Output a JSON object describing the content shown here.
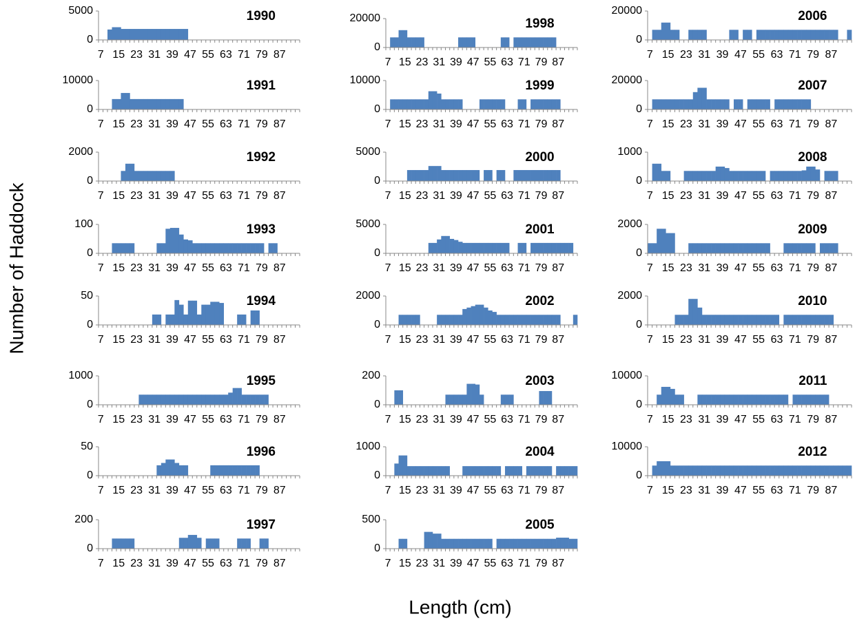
{
  "chart_data": {
    "type": "bar",
    "xlabel": "Length (cm)",
    "ylabel": "Number of Haddock",
    "color": "#4f81bd",
    "categories": [
      7,
      null,
      null,
      null,
      15,
      null,
      null,
      null,
      23,
      null,
      null,
      null,
      31,
      null,
      null,
      null,
      39,
      null,
      null,
      null,
      47,
      null,
      null,
      null,
      55,
      null,
      null,
      null,
      63,
      null,
      null,
      null,
      71,
      null,
      null,
      null,
      79,
      null,
      null,
      null,
      87,
      null,
      null,
      null,
      null
    ],
    "panels": [
      {
        "title": "1990",
        "ylim": [
          0,
          5000
        ],
        "yticks": [
          0,
          5000
        ],
        "values": [
          0,
          0,
          1800,
          2200,
          2200,
          1900,
          1900,
          1900,
          1900,
          1900,
          1900,
          1900,
          1900,
          1900,
          1900,
          1900,
          1900,
          1900,
          1900,
          1900,
          0,
          0,
          0,
          0,
          0,
          0,
          0,
          0,
          0,
          0,
          0,
          0,
          0,
          0,
          0,
          0,
          0,
          0,
          0,
          0,
          0,
          0,
          0,
          0,
          0
        ]
      },
      {
        "title": "1991",
        "ylim": [
          0,
          10000
        ],
        "yticks": [
          0,
          10000
        ],
        "values": [
          0,
          0,
          0,
          3600,
          3600,
          5700,
          5700,
          3600,
          3600,
          3600,
          3600,
          3600,
          3600,
          3600,
          3600,
          3600,
          3600,
          3600,
          3600,
          0,
          0,
          0,
          0,
          0,
          0,
          0,
          0,
          0,
          0,
          0,
          0,
          0,
          0,
          0,
          0,
          0,
          0,
          0,
          0,
          0,
          0,
          0,
          0,
          0,
          0
        ]
      },
      {
        "title": "1992",
        "ylim": [
          0,
          2000
        ],
        "yticks": [
          0,
          2000
        ],
        "values": [
          0,
          0,
          0,
          0,
          0,
          700,
          1200,
          1200,
          700,
          700,
          700,
          700,
          700,
          700,
          700,
          700,
          700,
          0,
          0,
          0,
          0,
          0,
          0,
          0,
          0,
          0,
          0,
          0,
          0,
          0,
          0,
          0,
          0,
          0,
          0,
          0,
          0,
          0,
          0,
          0,
          0,
          0,
          0,
          0,
          0
        ]
      },
      {
        "title": "1993",
        "ylim": [
          0,
          100
        ],
        "yticks": [
          0,
          100
        ],
        "values": [
          0,
          0,
          0,
          35,
          35,
          35,
          35,
          35,
          0,
          0,
          0,
          0,
          0,
          35,
          35,
          85,
          88,
          88,
          65,
          48,
          45,
          35,
          35,
          35,
          35,
          35,
          35,
          35,
          35,
          35,
          35,
          35,
          35,
          35,
          35,
          35,
          35,
          0,
          35,
          35,
          0,
          0,
          0,
          0,
          0
        ]
      },
      {
        "title": "1994",
        "ylim": [
          0,
          50
        ],
        "yticks": [
          0,
          50
        ],
        "values": [
          0,
          0,
          0,
          0,
          0,
          0,
          0,
          0,
          0,
          0,
          0,
          0,
          18,
          18,
          0,
          18,
          18,
          43,
          35,
          18,
          42,
          42,
          18,
          35,
          35,
          40,
          40,
          38,
          0,
          0,
          0,
          18,
          18,
          0,
          25,
          25,
          0,
          0,
          0,
          0,
          0,
          0,
          0,
          0,
          0
        ]
      },
      {
        "title": "1995",
        "ylim": [
          0,
          1000
        ],
        "yticks": [
          0,
          1000
        ],
        "values": [
          0,
          0,
          0,
          0,
          0,
          0,
          0,
          0,
          0,
          350,
          350,
          350,
          350,
          350,
          350,
          350,
          350,
          350,
          350,
          350,
          350,
          350,
          350,
          350,
          350,
          350,
          350,
          350,
          350,
          420,
          580,
          580,
          350,
          350,
          350,
          350,
          350,
          350,
          0,
          0,
          0,
          0,
          0,
          0,
          0
        ]
      },
      {
        "title": "1996",
        "ylim": [
          0,
          50
        ],
        "yticks": [
          0,
          50
        ],
        "values": [
          0,
          0,
          0,
          0,
          0,
          0,
          0,
          0,
          0,
          0,
          0,
          0,
          0,
          18,
          22,
          28,
          28,
          22,
          18,
          18,
          0,
          0,
          0,
          0,
          0,
          18,
          18,
          18,
          18,
          18,
          18,
          18,
          18,
          18,
          18,
          18,
          0,
          0,
          0,
          0,
          0,
          0,
          0,
          0,
          0
        ]
      },
      {
        "title": "1997",
        "ylim": [
          0,
          200
        ],
        "yticks": [
          0,
          200
        ],
        "values": [
          0,
          0,
          0,
          70,
          70,
          70,
          70,
          70,
          0,
          0,
          0,
          0,
          0,
          0,
          0,
          0,
          0,
          0,
          75,
          75,
          95,
          95,
          75,
          0,
          70,
          70,
          70,
          0,
          0,
          0,
          0,
          70,
          70,
          70,
          0,
          0,
          70,
          70,
          0,
          0,
          0,
          0,
          0,
          0,
          0
        ]
      },
      {
        "title": "1998",
        "ylim": [
          0,
          20000
        ],
        "yticks": [
          0,
          20000
        ],
        "values": [
          0,
          7000,
          7000,
          12000,
          12000,
          7000,
          7000,
          7000,
          7000,
          0,
          0,
          0,
          0,
          0,
          0,
          0,
          0,
          7000,
          7000,
          7000,
          7000,
          0,
          0,
          0,
          0,
          0,
          0,
          7000,
          7000,
          0,
          7000,
          7000,
          7000,
          7000,
          7000,
          7000,
          7000,
          7000,
          7000,
          7000,
          0,
          0,
          0,
          0,
          0
        ]
      },
      {
        "title": "1999",
        "ylim": [
          0,
          10000
        ],
        "yticks": [
          0,
          10000
        ],
        "values": [
          0,
          3500,
          3500,
          3500,
          3500,
          3500,
          3500,
          3500,
          3500,
          3500,
          6300,
          6300,
          5500,
          3500,
          3500,
          3500,
          3500,
          3500,
          0,
          0,
          0,
          0,
          3500,
          3500,
          3500,
          3500,
          3500,
          3500,
          0,
          0,
          0,
          3500,
          3500,
          0,
          3500,
          3500,
          3500,
          3500,
          3500,
          3500,
          3500,
          0,
          0,
          0,
          0
        ]
      },
      {
        "title": "2000",
        "ylim": [
          0,
          5000
        ],
        "yticks": [
          0,
          5000
        ],
        "values": [
          0,
          0,
          0,
          0,
          0,
          1900,
          1900,
          1900,
          1900,
          1900,
          2600,
          2600,
          2600,
          1900,
          1900,
          1900,
          1900,
          1900,
          1900,
          1900,
          1900,
          1900,
          0,
          1900,
          1900,
          0,
          1900,
          1900,
          0,
          0,
          1900,
          1900,
          1900,
          1900,
          1900,
          1900,
          1900,
          1900,
          1900,
          1900,
          1900,
          0,
          0,
          0,
          0
        ]
      },
      {
        "title": "2001",
        "ylim": [
          0,
          5000
        ],
        "yticks": [
          0,
          5000
        ],
        "values": [
          0,
          0,
          0,
          0,
          0,
          0,
          0,
          0,
          0,
          0,
          1800,
          1800,
          2400,
          3000,
          3000,
          2500,
          2300,
          2000,
          1800,
          1800,
          1800,
          1800,
          1800,
          1800,
          1800,
          1800,
          1800,
          1800,
          1800,
          0,
          0,
          1800,
          1800,
          0,
          1800,
          1800,
          1800,
          1800,
          1800,
          1800,
          1800,
          1800,
          1800,
          1800,
          0
        ]
      },
      {
        "title": "2002",
        "ylim": [
          0,
          2000
        ],
        "yticks": [
          0,
          2000
        ],
        "values": [
          0,
          0,
          0,
          700,
          700,
          700,
          700,
          700,
          0,
          0,
          0,
          0,
          700,
          700,
          700,
          700,
          700,
          700,
          1100,
          1200,
          1300,
          1400,
          1400,
          1200,
          1000,
          900,
          700,
          700,
          700,
          700,
          700,
          700,
          700,
          700,
          700,
          700,
          700,
          700,
          700,
          700,
          700,
          0,
          0,
          0,
          700
        ]
      },
      {
        "title": "2003",
        "ylim": [
          0,
          200
        ],
        "yticks": [
          0,
          200
        ],
        "values": [
          0,
          0,
          100,
          100,
          0,
          0,
          0,
          0,
          0,
          0,
          0,
          0,
          0,
          0,
          70,
          70,
          70,
          70,
          70,
          145,
          145,
          140,
          70,
          0,
          0,
          0,
          0,
          70,
          70,
          70,
          0,
          0,
          0,
          0,
          0,
          0,
          95,
          95,
          95,
          0,
          0,
          0,
          0,
          0,
          0
        ]
      },
      {
        "title": "2004",
        "ylim": [
          0,
          1000
        ],
        "yticks": [
          0,
          1000
        ],
        "values": [
          0,
          0,
          420,
          700,
          700,
          330,
          330,
          330,
          330,
          330,
          330,
          330,
          330,
          330,
          330,
          0,
          0,
          0,
          330,
          330,
          330,
          330,
          330,
          330,
          330,
          330,
          330,
          0,
          330,
          330,
          330,
          330,
          0,
          330,
          330,
          330,
          330,
          330,
          330,
          0,
          330,
          330,
          330,
          330,
          330
        ]
      },
      {
        "title": "2005",
        "ylim": [
          0,
          500
        ],
        "yticks": [
          0,
          500
        ],
        "values": [
          0,
          0,
          0,
          170,
          170,
          0,
          0,
          0,
          0,
          290,
          290,
          260,
          260,
          170,
          170,
          170,
          170,
          170,
          170,
          170,
          170,
          170,
          170,
          170,
          170,
          0,
          170,
          170,
          170,
          170,
          170,
          170,
          170,
          170,
          170,
          170,
          170,
          170,
          170,
          170,
          190,
          190,
          190,
          170,
          170
        ]
      },
      {
        "title": "2006",
        "ylim": [
          0,
          20000
        ],
        "yticks": [
          0,
          20000
        ],
        "values": [
          0,
          7000,
          7000,
          12000,
          12000,
          7000,
          7000,
          0,
          0,
          7000,
          7000,
          7000,
          7000,
          0,
          0,
          0,
          0,
          0,
          7000,
          7000,
          0,
          7000,
          7000,
          0,
          7000,
          7000,
          7000,
          7000,
          7000,
          7000,
          7000,
          7000,
          7000,
          7000,
          7000,
          7000,
          7000,
          7000,
          7000,
          7000,
          7000,
          7000,
          0,
          0,
          7000
        ]
      },
      {
        "title": "2007",
        "ylim": [
          0,
          20000
        ],
        "yticks": [
          0,
          20000
        ],
        "values": [
          0,
          7000,
          7000,
          7000,
          7000,
          7000,
          7000,
          7000,
          7000,
          7000,
          12000,
          15000,
          15000,
          7000,
          7000,
          7000,
          7000,
          7000,
          0,
          7000,
          7000,
          0,
          7000,
          7000,
          7000,
          7000,
          7000,
          0,
          7000,
          7000,
          7000,
          7000,
          7000,
          7000,
          7000,
          7000,
          0,
          0,
          0,
          0,
          0,
          0,
          0,
          0,
          0
        ]
      },
      {
        "title": "2008",
        "ylim": [
          0,
          1000
        ],
        "yticks": [
          0,
          1000
        ],
        "values": [
          0,
          600,
          600,
          350,
          350,
          0,
          0,
          0,
          350,
          350,
          350,
          350,
          350,
          350,
          350,
          500,
          500,
          450,
          350,
          350,
          350,
          350,
          350,
          350,
          350,
          350,
          0,
          350,
          350,
          350,
          350,
          350,
          350,
          350,
          370,
          500,
          500,
          400,
          0,
          350,
          350,
          350,
          0,
          0,
          0
        ]
      },
      {
        "title": "2009",
        "ylim": [
          0,
          2000
        ],
        "yticks": [
          0,
          2000
        ],
        "values": [
          700,
          700,
          1700,
          1700,
          1400,
          1400,
          0,
          0,
          0,
          700,
          700,
          700,
          700,
          700,
          700,
          700,
          700,
          700,
          700,
          700,
          700,
          700,
          700,
          700,
          700,
          700,
          700,
          0,
          0,
          0,
          700,
          700,
          700,
          700,
          700,
          700,
          700,
          0,
          700,
          700,
          700,
          700,
          0,
          0,
          0
        ]
      },
      {
        "title": "2010",
        "ylim": [
          0,
          2000
        ],
        "yticks": [
          0,
          2000
        ],
        "values": [
          0,
          0,
          0,
          0,
          0,
          0,
          700,
          700,
          700,
          1800,
          1800,
          1200,
          700,
          700,
          700,
          700,
          700,
          700,
          700,
          700,
          700,
          700,
          700,
          700,
          700,
          700,
          700,
          700,
          700,
          0,
          700,
          700,
          700,
          700,
          700,
          700,
          700,
          700,
          700,
          700,
          700,
          0,
          0,
          0,
          0
        ]
      },
      {
        "title": "2011",
        "ylim": [
          0,
          10000
        ],
        "yticks": [
          0,
          10000
        ],
        "values": [
          0,
          0,
          3500,
          6200,
          6200,
          5500,
          3500,
          3500,
          0,
          0,
          0,
          3500,
          3500,
          3500,
          3500,
          3500,
          3500,
          3500,
          3500,
          3500,
          3500,
          3500,
          3500,
          3500,
          3500,
          3500,
          3500,
          3500,
          3500,
          3500,
          3500,
          0,
          3500,
          3500,
          3500,
          3500,
          3500,
          3500,
          3500,
          3500,
          0,
          0,
          0,
          0,
          0
        ]
      },
      {
        "title": "2012",
        "ylim": [
          0,
          10000
        ],
        "yticks": [
          0,
          10000
        ],
        "values": [
          0,
          3500,
          5000,
          5000,
          5000,
          3500,
          3500,
          3500,
          3500,
          3500,
          3500,
          3500,
          3500,
          3500,
          3500,
          3500,
          3500,
          3500,
          3500,
          3500,
          3500,
          3500,
          3500,
          3500,
          3500,
          3500,
          3500,
          3500,
          3500,
          3500,
          3500,
          3500,
          3500,
          3500,
          3500,
          3500,
          3500,
          3500,
          3500,
          3500,
          3500,
          3500,
          3500,
          3500,
          3500
        ]
      }
    ]
  }
}
